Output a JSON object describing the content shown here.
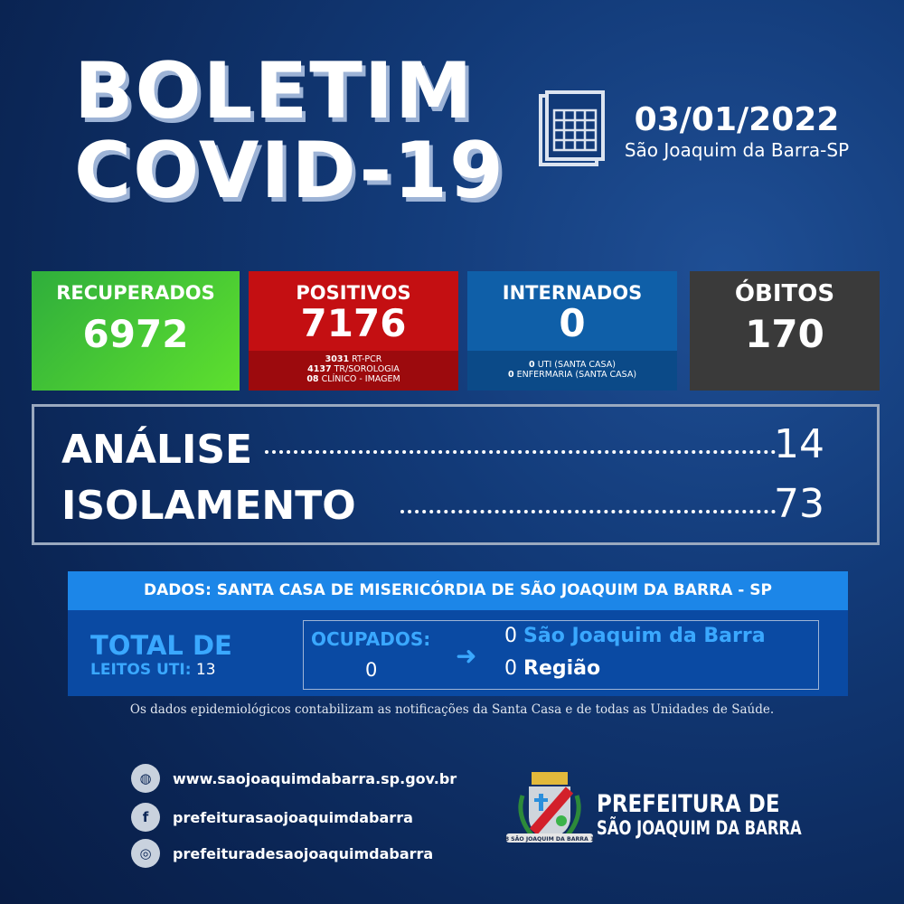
{
  "header": {
    "title_line1": "BOLETIM",
    "title_line2": "COVID-19",
    "date": "03/01/2022",
    "location": "São Joaquim da Barra-SP",
    "calendar_icon": "calendar-icon"
  },
  "cards": {
    "recuperados": {
      "label": "RECUPERADOS",
      "value": "6972",
      "color": "#3fbf3a"
    },
    "positivos": {
      "label": "POSITIVOS",
      "value": "7176",
      "color": "#c40f12",
      "details": [
        {
          "n": "3031",
          "t": "RT-PCR"
        },
        {
          "n": "4137",
          "t": "TR/SOROLOGIA"
        },
        {
          "n": "08",
          "t": "CLÍNICO - IMAGEM"
        }
      ]
    },
    "internados": {
      "label": "INTERNADOS",
      "value": "0",
      "color": "#0f5fa8",
      "details": [
        {
          "n": "0",
          "t": "UTI (SANTA CASA)"
        },
        {
          "n": "0",
          "t": "ENFERMARIA (SANTA CASA)"
        }
      ]
    },
    "obitos": {
      "label": "ÓBITOS",
      "value": "170",
      "color": "#3a3a3a"
    }
  },
  "stats": {
    "analise_label": "ANÁLISE",
    "analise_value": "14",
    "isolamento_label": "ISOLAMENTO",
    "isolamento_value": "73"
  },
  "uti": {
    "source": "DADOS: SANTA CASA DE MISERICÓRDIA DE SÃO JOAQUIM DA BARRA - SP",
    "total_label": "TOTAL DE",
    "leitos_label": "LEITOS UTI:",
    "leitos_value": "13",
    "ocupados_label": "OCUPADOS:",
    "ocupados_value": "0",
    "local_value": "0",
    "local_label": "São Joaquim da Barra",
    "regiao_value": "0",
    "regiao_label": "Região"
  },
  "footnote": "Os dados epidemiológicos contabilizam as notificações da Santa Casa e de todas as Unidades de Saúde.",
  "footer": {
    "website": "www.saojoaquimdabarra.sp.gov.br",
    "facebook": "prefeiturasaojoaquimdabarra",
    "instagram": "prefeituradesaojoaquimdabarra",
    "logo_line1": "PREFEITURA DE",
    "logo_line2": "SÃO JOAQUIM DA BARRA",
    "crest_text": "1898 SÃO JOAQUIM DA BARRA 1917"
  }
}
